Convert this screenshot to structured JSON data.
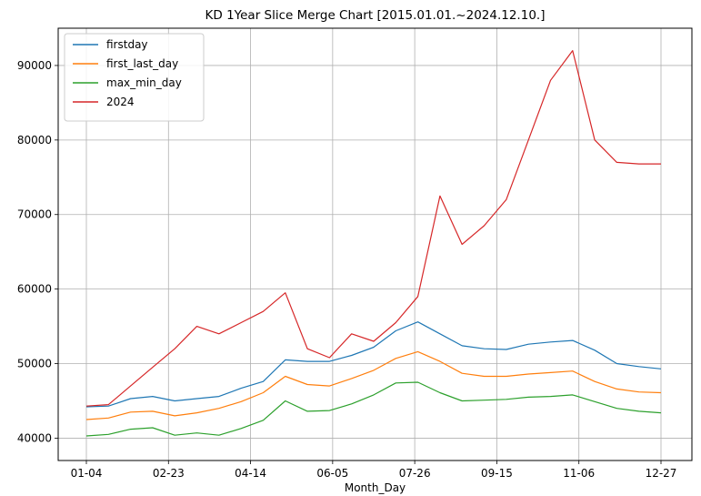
{
  "chart_data": {
    "type": "line",
    "title": "KD 1Year Slice Merge Chart [2015.01.01.~2024.12.10.]",
    "xlabel": "Month_Day",
    "ylabel": "",
    "x_ticks": [
      "01-04",
      "02-23",
      "04-14",
      "06-05",
      "07-26",
      "09-15",
      "11-06",
      "12-27"
    ],
    "y_ticks": [
      40000,
      50000,
      60000,
      70000,
      80000,
      90000
    ],
    "ylim": [
      37000,
      95000
    ],
    "grid": true,
    "legend_position": "top-left",
    "x": [
      "01-04",
      "01-19",
      "02-01",
      "02-15",
      "03-01",
      "03-15",
      "03-29",
      "04-12",
      "04-26",
      "05-10",
      "05-24",
      "06-07",
      "06-21",
      "07-05",
      "07-19",
      "08-02",
      "08-16",
      "08-30",
      "09-13",
      "09-27",
      "10-11",
      "10-25",
      "11-08",
      "11-22",
      "12-06",
      "12-20",
      "12-27"
    ],
    "series": [
      {
        "name": "firstday",
        "color": "#1f77b4",
        "values": [
          44200,
          44300,
          45300,
          45600,
          45000,
          45300,
          45600,
          46700,
          47600,
          50500,
          50300,
          50300,
          51100,
          52200,
          54400,
          55600,
          54000,
          52400,
          52000,
          51900,
          52600,
          52900,
          53100,
          51800,
          50000,
          49600,
          49300
        ]
      },
      {
        "name": "first_last_day",
        "color": "#ff7f0e",
        "values": [
          42500,
          42700,
          43500,
          43600,
          43000,
          43400,
          44000,
          44900,
          46100,
          48300,
          47200,
          47000,
          48000,
          49100,
          50700,
          51600,
          50300,
          48700,
          48300,
          48300,
          48600,
          48800,
          49000,
          47600,
          46600,
          46200,
          46100
        ]
      },
      {
        "name": "max_min_day",
        "color": "#2ca02c",
        "values": [
          40300,
          40500,
          41200,
          41400,
          40400,
          40700,
          40400,
          41300,
          42400,
          45000,
          43600,
          43700,
          44600,
          45800,
          47400,
          47500,
          46100,
          45000,
          45100,
          45200,
          45500,
          45600,
          45800,
          44900,
          44000,
          43600,
          43400
        ]
      },
      {
        "name": "2024",
        "color": "#d62728",
        "values": [
          44300,
          44500,
          47000,
          49500,
          52000,
          55000,
          54000,
          55500,
          57000,
          59500,
          52000,
          50800,
          54000,
          53000,
          55500,
          59000,
          72500,
          66000,
          68500,
          72000,
          80000,
          88000,
          92000,
          80000,
          77000,
          76800,
          76800
        ]
      }
    ]
  }
}
